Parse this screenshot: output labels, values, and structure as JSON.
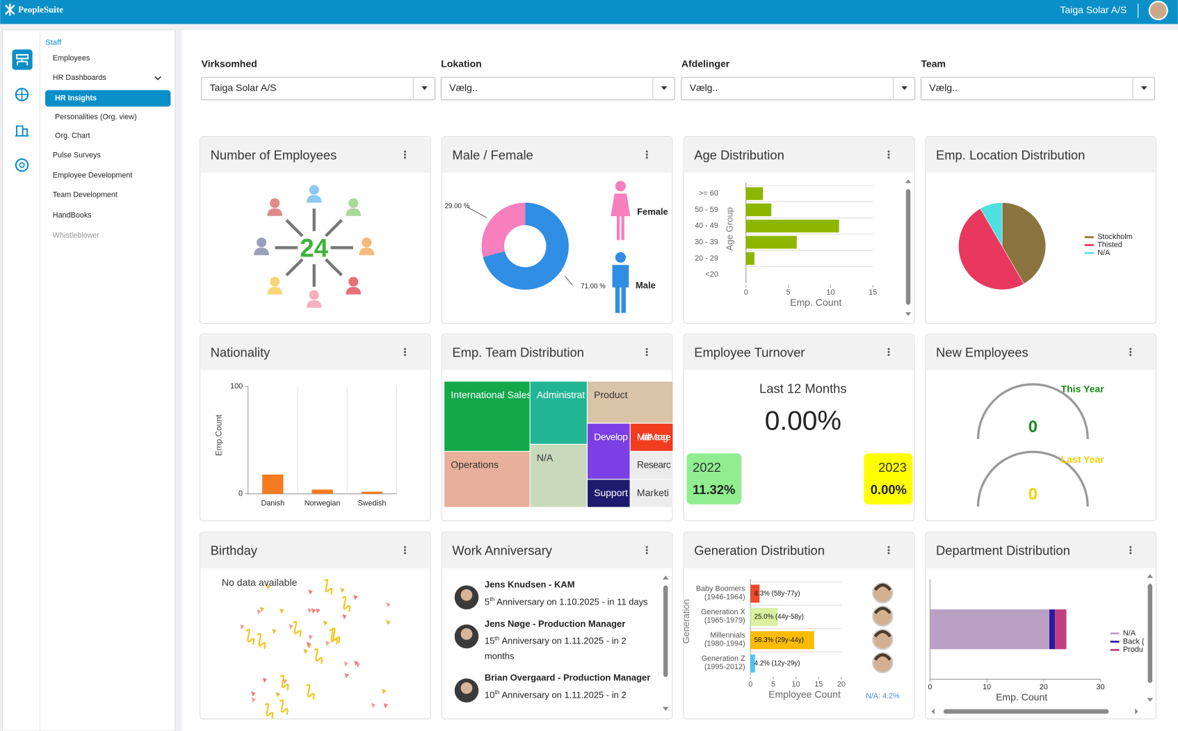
{
  "header": {
    "brand": "PeopleSuite",
    "company": "Taiga Solar A/S"
  },
  "sidebar": {
    "section": "Staff",
    "items": [
      "Employees",
      "HR Dashboards",
      "HR Insights",
      "Personalities (Org. view)",
      "Org. Chart",
      "Pulse Surveys",
      "Employee Development",
      "Team Development",
      "HandBooks",
      "Whistleblower"
    ]
  },
  "filters": [
    {
      "label": "Virksomhed",
      "value": "Taiga Solar A/S"
    },
    {
      "label": "Lokation",
      "value": "Vælg.."
    },
    {
      "label": "Afdelinger",
      "value": "Vælg.."
    },
    {
      "label": "Team",
      "value": "Vælg.."
    }
  ],
  "cards": [
    {
      "title": "Number of Employees",
      "value": 24
    },
    {
      "title": "Male / Female"
    },
    {
      "title": "Age Distribution"
    },
    {
      "title": "Emp. Location Distribution"
    },
    {
      "title": "Nationality"
    },
    {
      "title": "Emp. Team Distribution"
    },
    {
      "title": "Employee Turnover",
      "period": "Last 12 Months",
      "value": "0.00%",
      "years": [
        {
          "year": "2022",
          "rate": "11.32%"
        },
        {
          "year": "2023",
          "rate": "0.00%"
        }
      ]
    },
    {
      "title": "New Employees",
      "this_year_label": "This Year",
      "this_year": 0,
      "last_year_label": "Last Year",
      "last_year": 0
    },
    {
      "title": "Birthday",
      "message": "No data available"
    },
    {
      "title": "Work Anniversary",
      "entries": [
        {
          "name": "Jens Knudsen - KAM",
          "ordinal": "5",
          "suffix": "th",
          "text": "Anniversary on 1.10.2025 - in 11 days"
        },
        {
          "name": "Jens Nøge - Production Manager",
          "ordinal": "15",
          "suffix": "th",
          "text": "Anniversary on 1.11.2025 - in 2 months"
        },
        {
          "name": "Brian Overgaard - Production Manager",
          "ordinal": "10",
          "suffix": "th",
          "text": "Anniversary on 1.11.2025 - in 2"
        }
      ]
    },
    {
      "title": "Generation Distribution"
    },
    {
      "title": "Department Distribution"
    }
  ],
  "chart_data": [
    {
      "type": "donut",
      "categories": [
        "Female",
        "Male"
      ],
      "values": [
        29,
        71
      ],
      "value_labels": [
        "29.00 %",
        "71.00 %"
      ],
      "colors": [
        "#f77fbe",
        "#2f8de4"
      ]
    },
    {
      "type": "bar",
      "horizontal": true,
      "categories": [
        ">= 60",
        "50 - 59",
        "40 - 49",
        "30 - 39",
        "20 - 29",
        "<20"
      ],
      "values": [
        2,
        3,
        11,
        6,
        1,
        0
      ],
      "color": "#8db600",
      "xlim": [
        0,
        15
      ],
      "xticks": [
        0,
        5,
        10,
        15
      ],
      "x_label": "Emp. Count",
      "y_label": "Age Group"
    },
    {
      "type": "pie",
      "categories": [
        "Stockholm",
        "Thisted",
        "N/A"
      ],
      "values": [
        10,
        12,
        2
      ],
      "colors": [
        "#8b7340",
        "#e8385e",
        "#4de0e0"
      ]
    },
    {
      "type": "bar",
      "horizontal": false,
      "categories": [
        "Danish",
        "Norwegian",
        "Swedish"
      ],
      "values": [
        18,
        4,
        2
      ],
      "color": "#f47b20",
      "ylim": [
        0,
        100
      ],
      "yticks": [
        0,
        100
      ],
      "y_label": "Emp.Count"
    },
    {
      "type": "treemap",
      "categories": [
        "International Sales",
        "Operations",
        "Administrat",
        "N/A",
        "Product",
        "Develop",
        "Middle Manage",
        "Researc",
        "Support",
        "Marketi"
      ],
      "values": [
        5,
        4,
        3,
        3,
        3,
        2,
        1,
        1,
        1,
        1
      ],
      "colors": [
        "#13a84a",
        "#e8b09a",
        "#22b594",
        "#c8d9bc",
        "#d9c4a8",
        "#7b3fe4",
        "#f03c1f",
        "#ececec",
        "#1e1b6e",
        "#eeeeee"
      ]
    },
    {
      "type": "bar",
      "horizontal": true,
      "categories": [
        "Baby Boomers",
        "Generation X",
        "Millennials",
        "Generation Z"
      ],
      "sublabels": [
        "(1946-1964)",
        "(1965-1979)",
        "(1980-1994)",
        "(1995-2012)"
      ],
      "values": [
        2,
        6,
        14,
        1
      ],
      "bar_labels": [
        "8.3% (58y-77y)",
        "25.0% (44y-58y)",
        "58.3% (29y-44y)",
        "4.2% (12y-29y)"
      ],
      "colors": [
        "#f04a2a",
        "#d8f0a0",
        "#fbbc05",
        "#4fc3f7"
      ],
      "xlim": [
        0,
        20
      ],
      "xticks": [
        0,
        5,
        10,
        15,
        20
      ],
      "x_label": "Employee Count",
      "y_label": "Generation",
      "note": "N/A: 4.2%"
    },
    {
      "type": "stacked-bar",
      "series": [
        {
          "name": "N/A",
          "color": "#b9a0c4",
          "values": [
            21
          ]
        },
        {
          "name": "Back (",
          "color": "#2a1aa0",
          "values": [
            1
          ]
        },
        {
          "name": "Produ",
          "color": "#c0407f",
          "values": [
            2
          ]
        }
      ],
      "xlim": [
        0,
        30
      ],
      "xticks": [
        0,
        10,
        20,
        30
      ],
      "x_label": "Emp. Count"
    }
  ]
}
